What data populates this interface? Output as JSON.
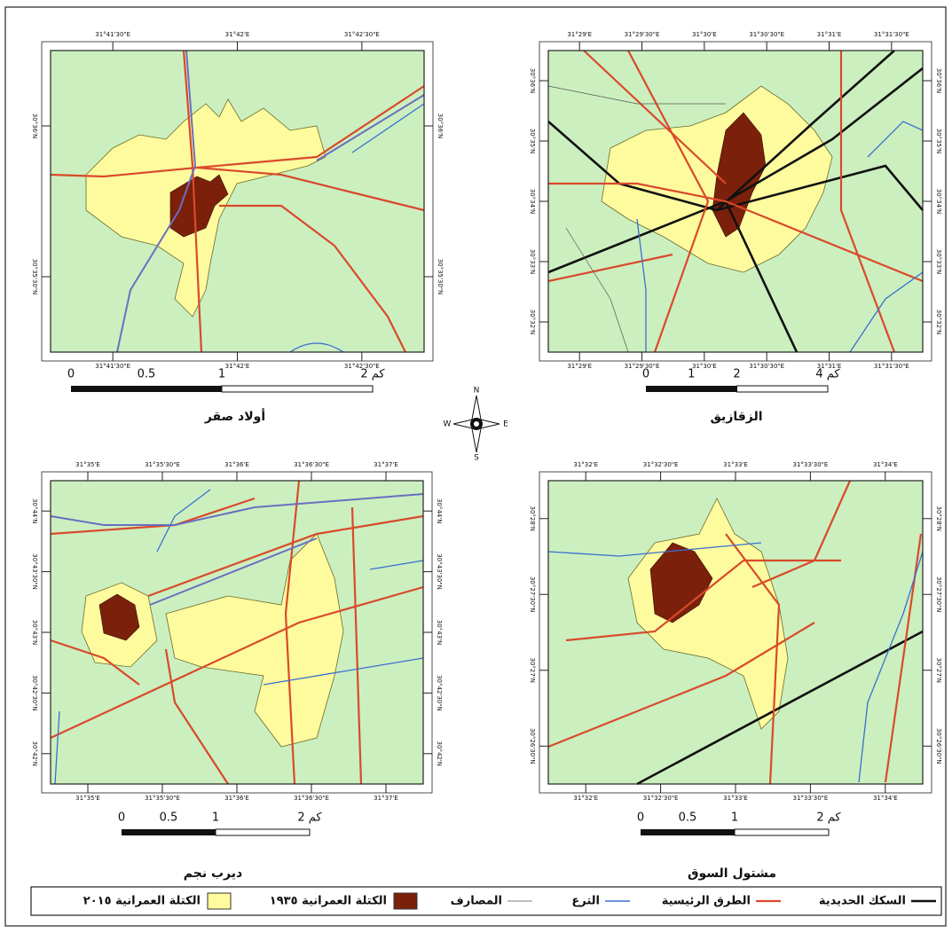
{
  "panels": [
    {
      "title": "أولاد صقر",
      "scale_labels": [
        "0",
        "0.5",
        "1",
        "2 كم"
      ],
      "top_coords": [
        "31°41'30\"E",
        "31°42'E",
        "31°42'30\"E"
      ],
      "bottom_coords": [
        "31°41'30\"E",
        "31°42'E",
        "31°42'30\"E"
      ],
      "left_coords": [
        "30°36'N",
        "30°35'30\"N"
      ],
      "right_coords": [
        "30°36'N",
        "30°35'30\"N"
      ]
    },
    {
      "title": "الزقازيق",
      "scale_labels": [
        "0",
        "1",
        "2",
        "4 كم"
      ],
      "top_coords": [
        "31°29'E",
        "31°29'30\"E",
        "31°30'E",
        "31°30'30\"E",
        "31°31'E",
        "31°31'30\"E"
      ],
      "bottom_coords": [
        "31°29'E",
        "31°29'30\"E",
        "31°30'E",
        "31°30'30\"E",
        "31°31'E",
        "31°31'30\"E"
      ],
      "left_coords": [
        "30°36'N",
        "30°35'N",
        "30°34'N",
        "30°33'N",
        "30°32'N"
      ],
      "right_coords": [
        "30°36'N",
        "30°35'N",
        "30°34'N",
        "30°33'N",
        "30°32'N"
      ]
    },
    {
      "title": "ديرب نجم",
      "scale_labels": [
        "0",
        "0.5",
        "1",
        "2 كم"
      ],
      "top_coords": [
        "31°35'E",
        "31°35'30\"E",
        "31°36'E",
        "31°36'30\"E",
        "31°37'E"
      ],
      "bottom_coords": [
        "31°35'E",
        "31°35'30\"E",
        "31°36'E",
        "31°36'30\"E",
        "31°37'E"
      ],
      "left_coords": [
        "30°44'N",
        "30°43'30\"N",
        "30°43'N",
        "30°42'30\"N",
        "30°42'N"
      ],
      "right_coords": [
        "30°44'N",
        "30°43'30\"N",
        "30°43'N",
        "30°42'30\"N",
        "30°42'N"
      ]
    },
    {
      "title": "مشتول السوق",
      "scale_labels": [
        "0",
        "0.5",
        "1",
        "2 كم"
      ],
      "top_coords": [
        "31°32'E",
        "31°32'30\"E",
        "31°33'E",
        "31°33'30\"E",
        "31°34'E"
      ],
      "bottom_coords": [
        "31°32'E",
        "31°32'30\"E",
        "31°33'E",
        "31°33'30\"E",
        "31°34'E"
      ],
      "left_coords": [
        "30°28'N",
        "30°27'30\"N",
        "30°27'N",
        "30°26'30\"N"
      ],
      "right_coords": [
        "30°28'N",
        "30°27'30\"N",
        "30°27'N",
        "30°26'30\"N"
      ]
    }
  ],
  "compass": {
    "n": "N",
    "s": "S",
    "e": "E",
    "w": "W"
  },
  "legend": [
    "السكك الحديدية",
    "الطرق الرئيسية",
    "الترع",
    "المصارف",
    "الكتلة العمرانية ١٩٣٥",
    "الكتلة العمرانية ٢٠١٥"
  ]
}
